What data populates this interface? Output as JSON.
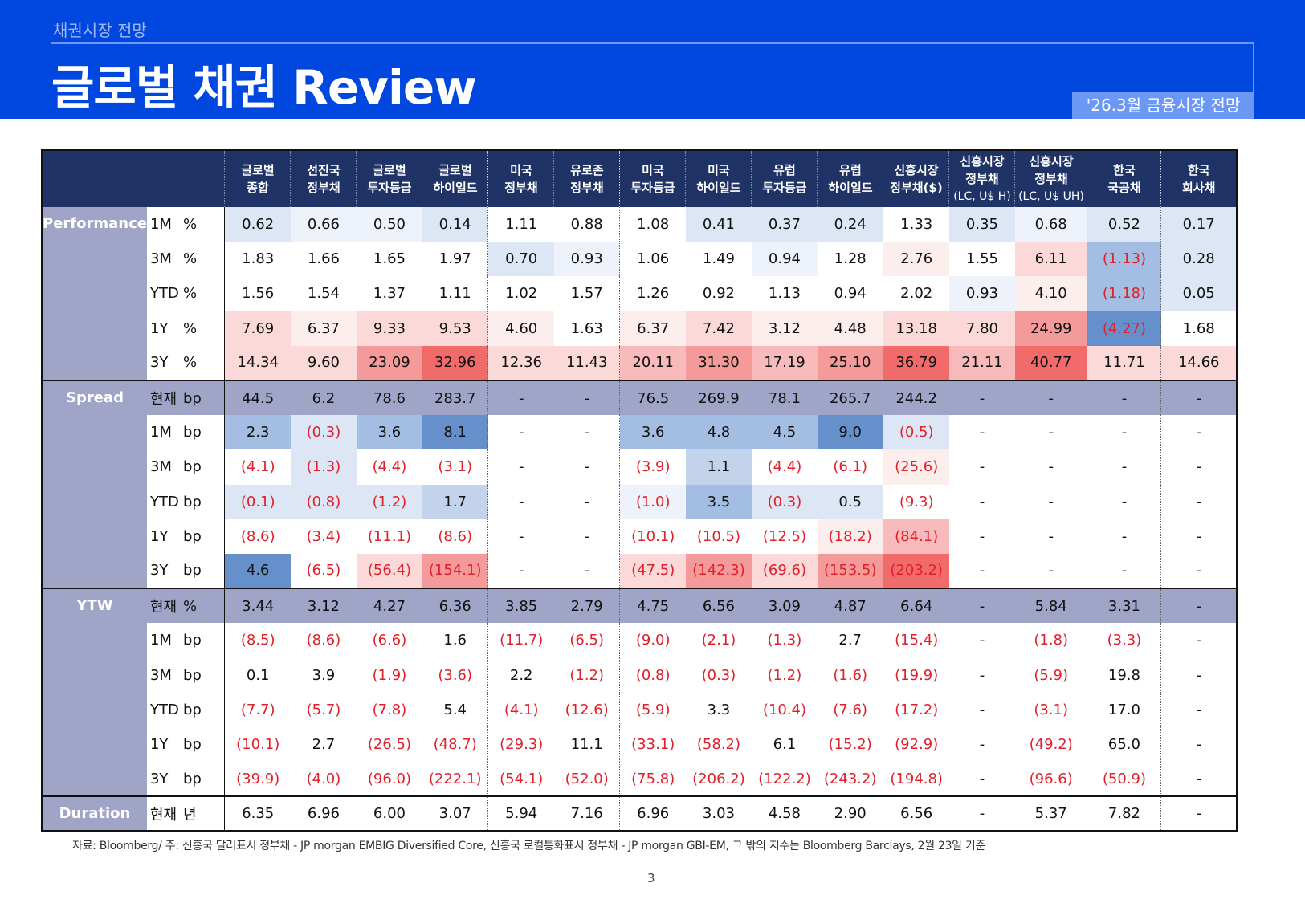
{
  "header": {
    "section": "채권시장 전망",
    "title": "글로벌 채권 Review",
    "badge": "'26.3월 금융시장 전망"
  },
  "table": {
    "columns": [
      [
        "글로벌",
        "종합",
        ""
      ],
      [
        "선진국",
        "정부채",
        ""
      ],
      [
        "글로벌",
        "투자등급",
        ""
      ],
      [
        "글로벌",
        "하이일드",
        ""
      ],
      [
        "미국",
        "정부채",
        ""
      ],
      [
        "유로존",
        "정부채",
        ""
      ],
      [
        "미국",
        "투자등급",
        ""
      ],
      [
        "미국",
        "하이일드",
        ""
      ],
      [
        "유럽",
        "투자등급",
        ""
      ],
      [
        "유럽",
        "하이일드",
        ""
      ],
      [
        "신흥시장",
        "정부채($)",
        ""
      ],
      [
        "신흥시장",
        "정부채",
        "(LC, U$ H)"
      ],
      [
        "신흥시장",
        "정부채",
        "(LC, U$ UH)"
      ],
      [
        "한국",
        "국공채",
        ""
      ],
      [
        "한국",
        "회사채",
        ""
      ]
    ],
    "groups": [
      {
        "name": "Performance",
        "rows": [
          {
            "period": "1M",
            "unit": "%",
            "values": [
              "0.62",
              "0.66",
              "0.50",
              "0.14",
              "1.11",
              "0.88",
              "1.08",
              "0.41",
              "0.37",
              "0.24",
              "1.33",
              "0.35",
              "0.68",
              "0.52",
              "0.17"
            ]
          },
          {
            "period": "3M",
            "unit": "%",
            "values": [
              "1.83",
              "1.66",
              "1.65",
              "1.97",
              "0.70",
              "0.93",
              "1.06",
              "1.49",
              "0.94",
              "1.28",
              "2.76",
              "1.55",
              "6.11",
              "(1.13)",
              "0.28"
            ]
          },
          {
            "period": "YTD",
            "unit": "%",
            "values": [
              "1.56",
              "1.54",
              "1.37",
              "1.11",
              "1.02",
              "1.57",
              "1.26",
              "0.92",
              "1.13",
              "0.94",
              "2.02",
              "0.93",
              "4.10",
              "(1.18)",
              "0.05"
            ]
          },
          {
            "period": "1Y",
            "unit": "%",
            "values": [
              "7.69",
              "6.37",
              "9.33",
              "9.53",
              "4.60",
              "1.63",
              "6.37",
              "7.42",
              "3.12",
              "4.48",
              "13.18",
              "7.80",
              "24.99",
              "(4.27)",
              "1.68"
            ]
          },
          {
            "period": "3Y",
            "unit": "%",
            "values": [
              "14.34",
              "9.60",
              "23.09",
              "32.96",
              "12.36",
              "11.43",
              "20.11",
              "31.30",
              "17.19",
              "25.10",
              "36.79",
              "21.11",
              "40.77",
              "11.71",
              "14.66"
            ]
          }
        ]
      },
      {
        "name": "Spread",
        "rows": [
          {
            "period": "현재",
            "unit": "bp",
            "values": [
              "44.5",
              "6.2",
              "78.6",
              "283.7",
              "-",
              "-",
              "76.5",
              "269.9",
              "78.1",
              "265.7",
              "244.2",
              "-",
              "-",
              "-",
              "-"
            ]
          },
          {
            "period": "1M",
            "unit": "bp",
            "values": [
              "2.3",
              "(0.3)",
              "3.6",
              "8.1",
              "-",
              "-",
              "3.6",
              "4.8",
              "4.5",
              "9.0",
              "(0.5)",
              "-",
              "-",
              "-",
              "-"
            ]
          },
          {
            "period": "3M",
            "unit": "bp",
            "values": [
              "(4.1)",
              "(1.3)",
              "(4.4)",
              "(3.1)",
              "-",
              "-",
              "(3.9)",
              "1.1",
              "(4.4)",
              "(6.1)",
              "(25.6)",
              "-",
              "-",
              "-",
              "-"
            ]
          },
          {
            "period": "YTD",
            "unit": "bp",
            "values": [
              "(0.1)",
              "(0.8)",
              "(1.2)",
              "1.7",
              "-",
              "-",
              "(1.0)",
              "3.5",
              "(0.3)",
              "0.5",
              "(9.3)",
              "-",
              "-",
              "-",
              "-"
            ]
          },
          {
            "period": "1Y",
            "unit": "bp",
            "values": [
              "(8.6)",
              "(3.4)",
              "(11.1)",
              "(8.6)",
              "-",
              "-",
              "(10.1)",
              "(10.5)",
              "(12.5)",
              "(18.2)",
              "(84.1)",
              "-",
              "-",
              "-",
              "-"
            ]
          },
          {
            "period": "3Y",
            "unit": "bp",
            "values": [
              "4.6",
              "(6.5)",
              "(56.4)",
              "(154.1)",
              "-",
              "-",
              "(47.5)",
              "(142.3)",
              "(69.6)",
              "(153.5)",
              "(203.2)",
              "-",
              "-",
              "-",
              "-"
            ]
          }
        ]
      },
      {
        "name": "YTW",
        "rows": [
          {
            "period": "현재",
            "unit": "%",
            "values": [
              "3.44",
              "3.12",
              "4.27",
              "6.36",
              "3.85",
              "2.79",
              "4.75",
              "6.56",
              "3.09",
              "4.87",
              "6.64",
              "-",
              "5.84",
              "3.31",
              "-"
            ]
          },
          {
            "period": "1M",
            "unit": "bp",
            "values": [
              "(8.5)",
              "(8.6)",
              "(6.6)",
              "1.6",
              "(11.7)",
              "(6.5)",
              "(9.0)",
              "(2.1)",
              "(1.3)",
              "2.7",
              "(15.4)",
              "-",
              "(1.8)",
              "(3.3)",
              "-"
            ]
          },
          {
            "period": "3M",
            "unit": "bp",
            "values": [
              "0.1",
              "3.9",
              "(1.9)",
              "(3.6)",
              "2.2",
              "(1.2)",
              "(0.8)",
              "(0.3)",
              "(1.2)",
              "(1.6)",
              "(19.9)",
              "-",
              "(5.9)",
              "19.8",
              "-"
            ]
          },
          {
            "period": "YTD",
            "unit": "bp",
            "values": [
              "(7.7)",
              "(5.7)",
              "(7.8)",
              "5.4",
              "(4.1)",
              "(12.6)",
              "(5.9)",
              "3.3",
              "(10.4)",
              "(7.6)",
              "(17.2)",
              "-",
              "(3.1)",
              "17.0",
              "-"
            ]
          },
          {
            "period": "1Y",
            "unit": "bp",
            "values": [
              "(10.1)",
              "2.7",
              "(26.5)",
              "(48.7)",
              "(29.3)",
              "11.1",
              "(33.1)",
              "(58.2)",
              "6.1",
              "(15.2)",
              "(92.9)",
              "-",
              "(49.2)",
              "65.0",
              "-"
            ]
          },
          {
            "period": "3Y",
            "unit": "bp",
            "values": [
              "(39.9)",
              "(4.0)",
              "(96.0)",
              "(222.1)",
              "(54.1)",
              "(52.0)",
              "(75.8)",
              "(206.2)",
              "(122.2)",
              "(243.2)",
              "(194.8)",
              "-",
              "(96.6)",
              "(50.9)",
              "-"
            ]
          }
        ]
      },
      {
        "name": "Duration",
        "rows": [
          {
            "period": "현재",
            "unit": "년",
            "values": [
              "6.35",
              "6.96",
              "6.00",
              "3.07",
              "5.94",
              "7.16",
              "6.96",
              "3.03",
              "4.58",
              "2.90",
              "6.56",
              "-",
              "5.37",
              "7.82",
              "-"
            ]
          }
        ]
      }
    ]
  },
  "colors": {
    "header_bg": "#1f3366",
    "banner": "#0047e0",
    "negative": "#e0202a",
    "group_label": "#a0a5c8"
  },
  "footnote": "자료: Bloomberg/ 주: 신흥국 달러표시 정부채 - JP morgan EMBIG Diversified Core, 신흥국 로컬통화표시 정부채 - JP morgan GBI-EM, 그 밖의 지수는 Bloomberg Barclays, 2월 23일 기준",
  "page_number": "3"
}
